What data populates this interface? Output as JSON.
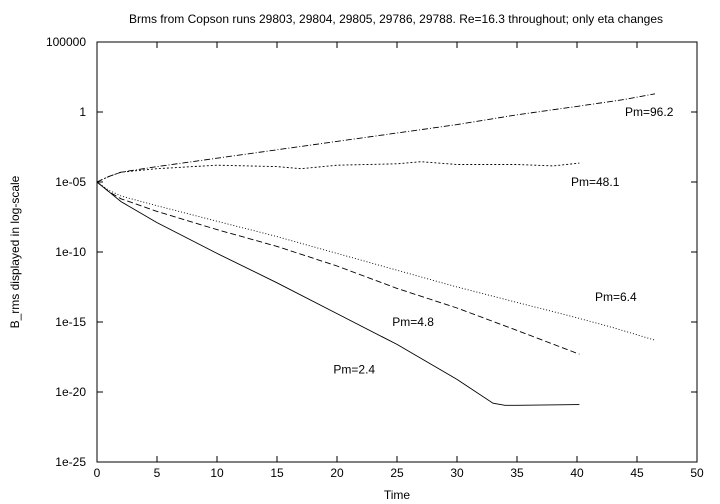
{
  "chart_data": {
    "type": "line",
    "title": "Brms from Copson runs 29803, 29804, 29805, 29786, 29788. Re=16.3 throughout; only eta changes",
    "xlabel": "Time",
    "ylabel": "B_rms displayed in log-scale",
    "xlim": [
      0,
      50
    ],
    "ylim_log10": [
      -25,
      5
    ],
    "y_scale": "log",
    "grid": false,
    "x_ticks": [
      0,
      5,
      10,
      15,
      20,
      25,
      30,
      35,
      40,
      45,
      50
    ],
    "x_tick_labels": [
      "0",
      "5",
      "10",
      "15",
      "20",
      "25",
      "30",
      "35",
      "40",
      "45",
      "50"
    ],
    "y_ticks_log10": [
      5,
      0,
      -5,
      -10,
      -15,
      -20,
      -25
    ],
    "y_tick_labels": [
      "100000",
      "1",
      "1e-05",
      "1e-10",
      "1e-15",
      "1e-20",
      "1e-25"
    ],
    "series": [
      {
        "name": "Pm=96.2",
        "dash": "6,2,1,2",
        "label_x": 44.0,
        "label_y_log10": 0.0,
        "x": [
          0,
          1,
          2,
          5,
          10,
          15,
          20,
          25,
          30,
          35,
          40,
          44,
          46.5
        ],
        "y_log10": [
          -5.0,
          -4.6,
          -4.3,
          -3.9,
          -3.3,
          -2.7,
          -2.1,
          -1.5,
          -0.9,
          -0.2,
          0.4,
          0.9,
          1.3
        ]
      },
      {
        "name": "Pm=48.1",
        "dash": "2,2",
        "label_x": 39.5,
        "label_y_log10": -5.0,
        "x": [
          0,
          1,
          2,
          5,
          10,
          15,
          17,
          20,
          25,
          27,
          30,
          35,
          38,
          40.2
        ],
        "y_log10": [
          -5.0,
          -4.6,
          -4.3,
          -4.05,
          -3.8,
          -3.9,
          -4.05,
          -3.8,
          -3.7,
          -3.55,
          -3.75,
          -3.75,
          -3.85,
          -3.65
        ]
      },
      {
        "name": "Pm=6.4",
        "dash": "1,2",
        "label_x": 41.5,
        "label_y_log10": -13.2,
        "x": [
          0,
          1,
          2,
          5,
          10,
          15,
          20,
          25,
          30,
          35,
          40,
          43,
          46.5
        ],
        "y_log10": [
          -5.0,
          -5.6,
          -6.0,
          -6.7,
          -7.8,
          -8.9,
          -10.1,
          -11.3,
          -12.5,
          -13.6,
          -14.7,
          -15.4,
          -16.3
        ]
      },
      {
        "name": "Pm=4.8",
        "dash": "6,3",
        "label_x": 24.6,
        "label_y_log10": -15.0,
        "x": [
          0,
          1,
          2,
          5,
          10,
          15,
          20,
          25,
          30,
          35,
          40.2
        ],
        "y_log10": [
          -5.0,
          -5.7,
          -6.2,
          -7.1,
          -8.4,
          -9.6,
          -11.0,
          -12.6,
          -14.0,
          -15.6,
          -17.3
        ]
      },
      {
        "name": "Pm=2.4",
        "dash": "",
        "label_x": 19.7,
        "label_y_log10": -18.4,
        "x": [
          0,
          1,
          2,
          5,
          10,
          15,
          20,
          25,
          30,
          33,
          34,
          35,
          40.2
        ],
        "y_log10": [
          -5.0,
          -5.7,
          -6.4,
          -7.9,
          -10.1,
          -12.2,
          -14.4,
          -16.6,
          -19.1,
          -20.8,
          -20.95,
          -20.95,
          -20.9
        ]
      }
    ]
  }
}
